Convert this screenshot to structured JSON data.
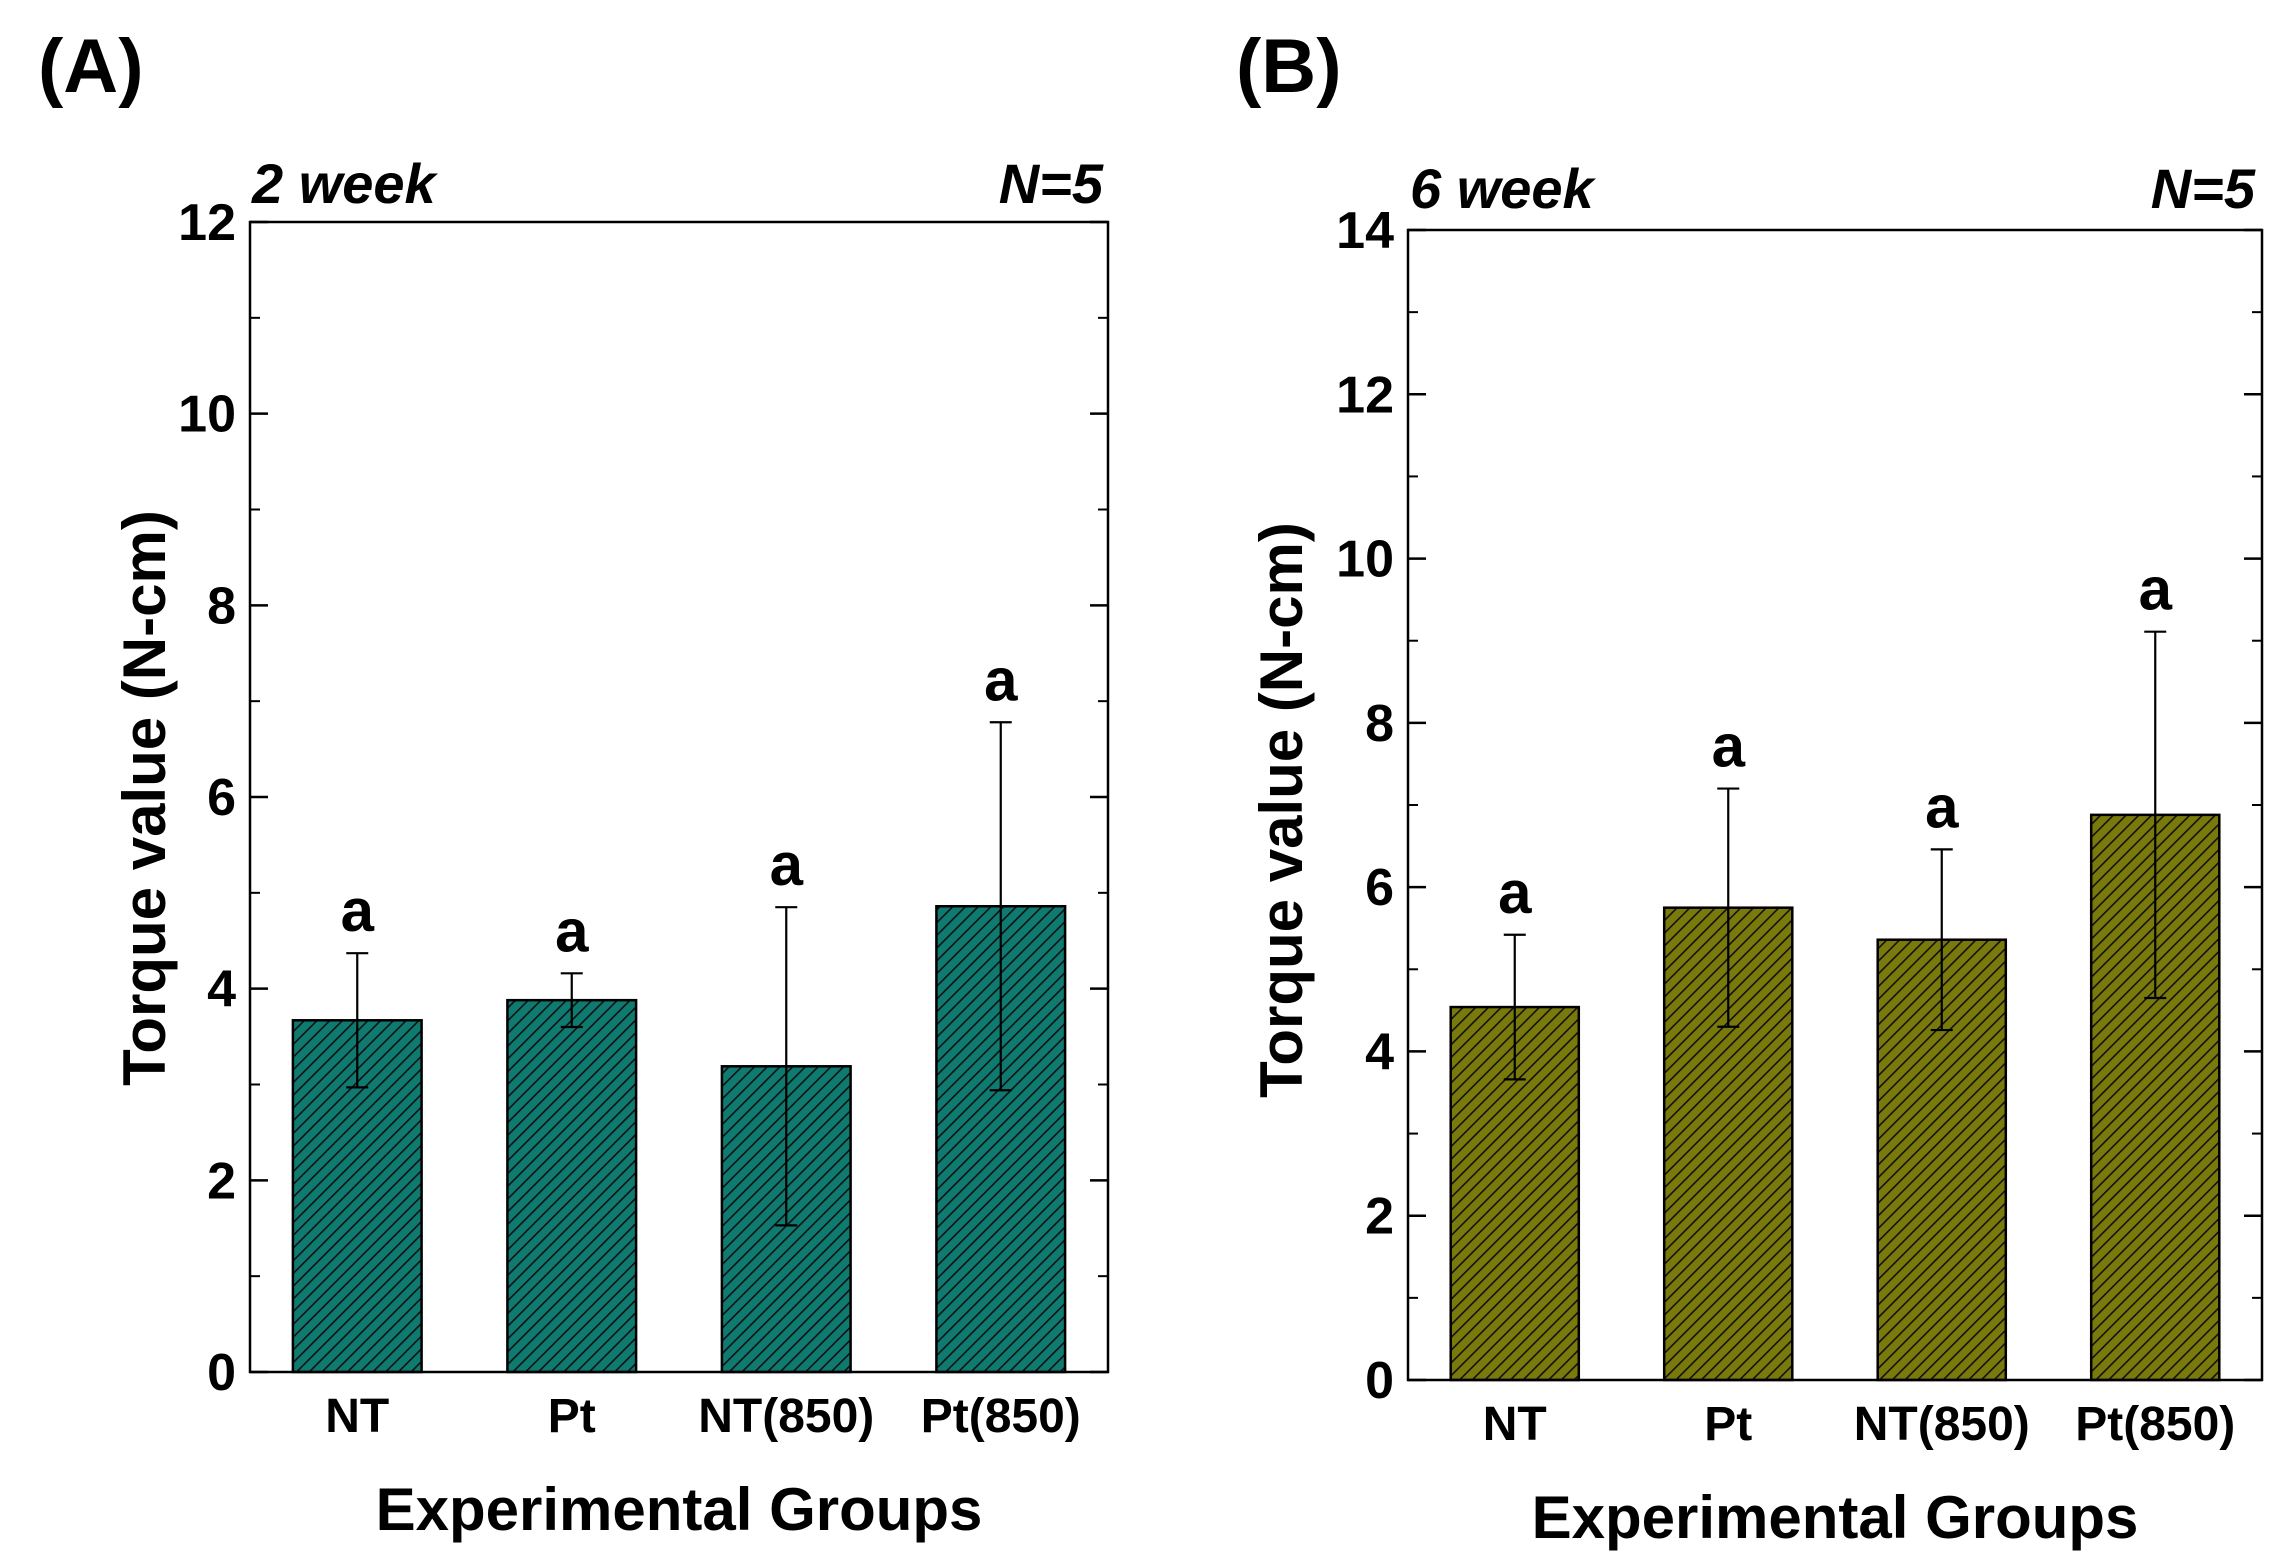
{
  "chart_data": [
    {
      "type": "bar",
      "panel_label": "(A)",
      "annotation_left": "2 week",
      "annotation_right": "N=5",
      "categories": [
        "NT",
        "Pt",
        "NT(850)",
        "Pt(850)"
      ],
      "values": [
        3.67,
        3.88,
        3.19,
        4.86
      ],
      "errors": [
        0.7,
        0.28,
        1.66,
        1.92
      ],
      "significance": [
        "a",
        "a",
        "a",
        "a"
      ],
      "xlabel": "Experimental Groups",
      "ylabel": "Torque value (N-cm)",
      "ylim": [
        0,
        12
      ],
      "yticks": [
        0,
        2,
        4,
        6,
        8,
        10,
        12
      ],
      "ytick_labels": [
        "0",
        "2",
        "4",
        "6",
        "8",
        "10",
        "12"
      ],
      "grid": false,
      "bar_color": "#0f7a70"
    },
    {
      "type": "bar",
      "panel_label": "(B)",
      "annotation_left": "6 week",
      "annotation_right": "N=5",
      "categories": [
        "NT",
        "Pt",
        "NT(850)",
        "Pt(850)"
      ],
      "values": [
        4.54,
        5.75,
        5.36,
        6.88
      ],
      "errors": [
        0.88,
        1.45,
        1.1,
        2.23
      ],
      "significance": [
        "a",
        "a",
        "a",
        "a"
      ],
      "xlabel": "Experimental Groups",
      "ylabel": "Torque value (N-cm)",
      "ylim": [
        0,
        14
      ],
      "yticks": [
        0,
        2,
        4,
        6,
        8,
        10,
        12,
        14
      ],
      "ytick_labels": [
        "0",
        "2",
        "4",
        "6",
        "8",
        "10",
        "12",
        "14"
      ],
      "grid": false,
      "bar_color": "#7a7a0c"
    }
  ]
}
